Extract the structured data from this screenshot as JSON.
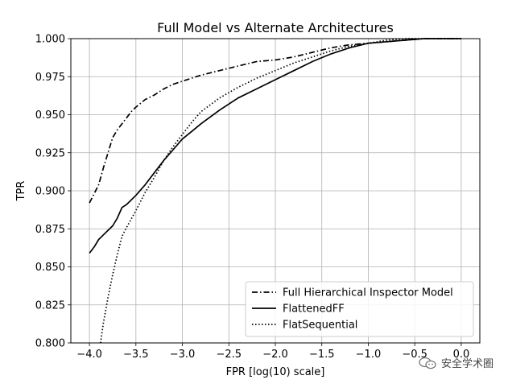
{
  "chart_data": {
    "type": "line",
    "title": "Full Model vs Alternate Architectures",
    "xlabel": "FPR [log(10) scale]",
    "ylabel": "TPR",
    "xlim": [
      -4.2,
      0.2
    ],
    "ylim": [
      0.8,
      1.0
    ],
    "xticks": [
      -4.0,
      -3.5,
      -3.0,
      -2.5,
      -2.0,
      -1.5,
      -1.0,
      -0.5,
      0.0
    ],
    "xtick_labels": [
      "−4.0",
      "−3.5",
      "−3.0",
      "−2.5",
      "−2.0",
      "−1.5",
      "−1.0",
      "−0.5",
      "0.0"
    ],
    "yticks": [
      0.8,
      0.825,
      0.85,
      0.875,
      0.9,
      0.925,
      0.95,
      0.975,
      1.0
    ],
    "ytick_labels": [
      "0.800",
      "0.825",
      "0.850",
      "0.875",
      "0.900",
      "0.925",
      "0.950",
      "0.975",
      "1.000"
    ],
    "grid": true,
    "legend_position": "lower-right",
    "series": [
      {
        "name": "Full Hierarchical Inspector Model",
        "style": "dashdot",
        "color": "#000000",
        "x": [
          -4.0,
          -3.95,
          -3.9,
          -3.85,
          -3.8,
          -3.75,
          -3.7,
          -3.65,
          -3.6,
          -3.55,
          -3.5,
          -3.4,
          -3.3,
          -3.2,
          -3.1,
          -3.0,
          -2.9,
          -2.8,
          -2.6,
          -2.4,
          -2.2,
          -2.0,
          -1.8,
          -1.6,
          -1.4,
          -1.2,
          -1.0,
          -0.8,
          -0.6,
          -0.4,
          -0.2,
          0.0
        ],
        "y": [
          0.892,
          0.898,
          0.904,
          0.915,
          0.925,
          0.935,
          0.94,
          0.944,
          0.948,
          0.952,
          0.955,
          0.96,
          0.963,
          0.967,
          0.97,
          0.972,
          0.974,
          0.976,
          0.979,
          0.982,
          0.985,
          0.986,
          0.988,
          0.991,
          0.994,
          0.996,
          0.997,
          0.998,
          0.999,
          1.0,
          1.0,
          1.0
        ]
      },
      {
        "name": "FlattenedFF",
        "style": "solid",
        "color": "#000000",
        "x": [
          -4.0,
          -3.95,
          -3.9,
          -3.85,
          -3.8,
          -3.75,
          -3.7,
          -3.65,
          -3.6,
          -3.5,
          -3.4,
          -3.3,
          -3.2,
          -3.1,
          -3.0,
          -2.9,
          -2.8,
          -2.6,
          -2.4,
          -2.2,
          -2.0,
          -1.8,
          -1.6,
          -1.4,
          -1.2,
          -1.0,
          -0.8,
          -0.6,
          -0.4,
          -0.2,
          0.0
        ],
        "y": [
          0.859,
          0.863,
          0.868,
          0.871,
          0.874,
          0.877,
          0.882,
          0.889,
          0.891,
          0.897,
          0.904,
          0.912,
          0.92,
          0.927,
          0.934,
          0.939,
          0.944,
          0.953,
          0.961,
          0.967,
          0.973,
          0.979,
          0.985,
          0.99,
          0.994,
          0.997,
          0.998,
          0.999,
          1.0,
          1.0,
          1.0
        ]
      },
      {
        "name": "FlatSequential",
        "style": "dotted",
        "color": "#000000",
        "x": [
          -3.88,
          -3.85,
          -3.8,
          -3.75,
          -3.7,
          -3.65,
          -3.6,
          -3.5,
          -3.4,
          -3.3,
          -3.2,
          -3.1,
          -3.0,
          -2.9,
          -2.8,
          -2.6,
          -2.4,
          -2.2,
          -2.0,
          -1.8,
          -1.6,
          -1.4,
          -1.2,
          -1.0,
          -0.8,
          -0.6,
          -0.4,
          -0.2,
          0.0
        ],
        "y": [
          0.8,
          0.813,
          0.83,
          0.845,
          0.858,
          0.87,
          0.876,
          0.887,
          0.899,
          0.909,
          0.92,
          0.929,
          0.937,
          0.945,
          0.952,
          0.961,
          0.968,
          0.974,
          0.979,
          0.984,
          0.988,
          0.992,
          0.995,
          0.997,
          0.999,
          1.0,
          1.0,
          1.0,
          1.0
        ]
      }
    ]
  },
  "watermark": {
    "text": "安全学术圈",
    "icon": "wechat-icon"
  }
}
